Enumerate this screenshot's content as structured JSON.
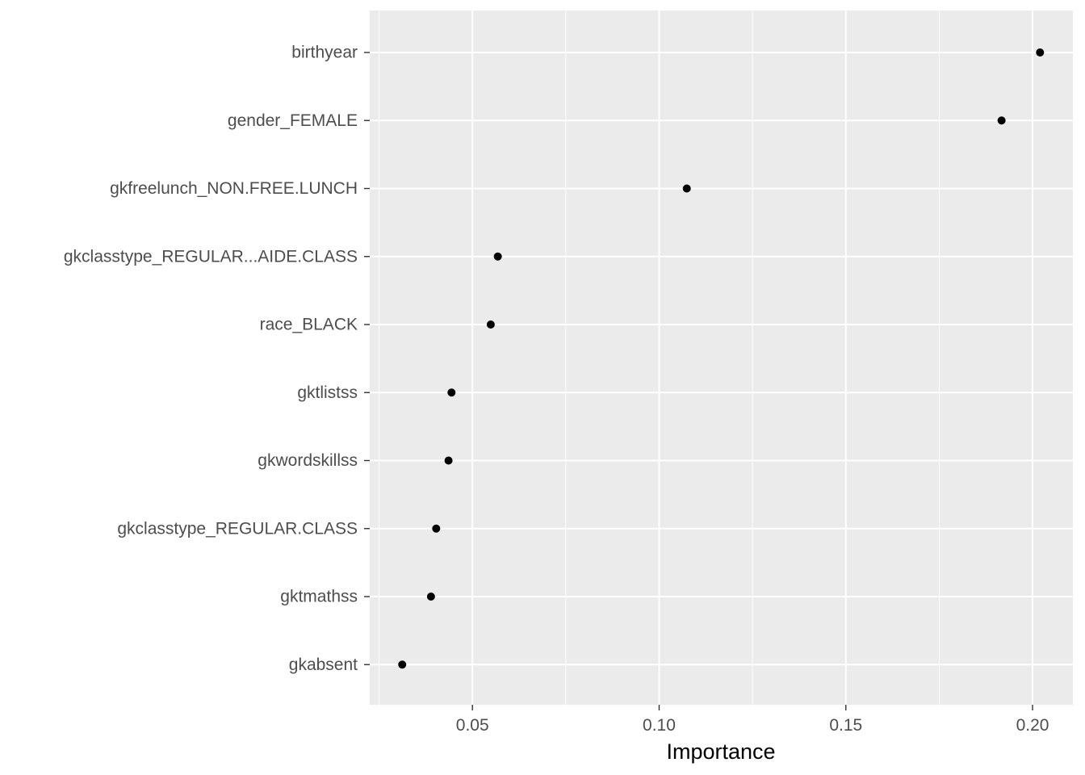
{
  "chart_data": {
    "type": "scatter",
    "xlabel": "Importance",
    "ylabel": "",
    "xlim": [
      0.0225,
      0.2108
    ],
    "x_ticks": [
      0.05,
      0.1,
      0.15,
      0.2
    ],
    "x_tick_labels": [
      "0.05",
      "0.10",
      "0.15",
      "0.20"
    ],
    "categories": [
      "birthyear",
      "gender_FEMALE",
      "gkfreelunch_NON.FREE.LUNCH",
      "gkclasstype_REGULAR...AIDE.CLASS",
      "race_BLACK",
      "gktlistss",
      "gkwordskillss",
      "gkclasstype_REGULAR.CLASS",
      "gktmathss",
      "gkabsent"
    ],
    "values": [
      0.202,
      0.1917,
      0.1074,
      0.0568,
      0.0549,
      0.0444,
      0.0436,
      0.0403,
      0.0389,
      0.0312
    ],
    "grid": true,
    "legend": "none",
    "colors": {
      "panel_background": "#ebebeb",
      "grid_major": "#ffffff",
      "point": "#000000",
      "tick_text": "#4d4d4d",
      "title_text": "#000000"
    }
  }
}
